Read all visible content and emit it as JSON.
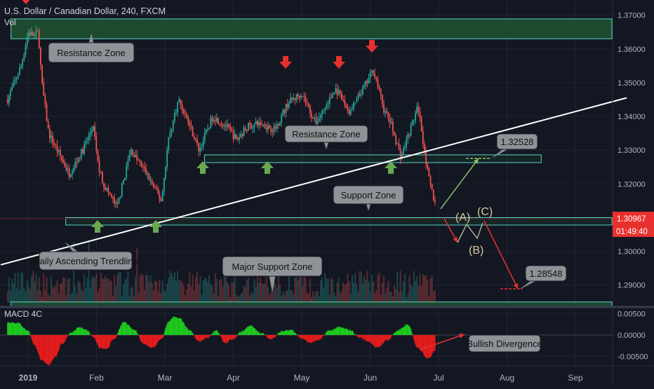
{
  "header": {
    "symbol_title": "U.S. Dollar / Canadian Dollar, 240, FXCM",
    "volume_label": "Vol"
  },
  "colors": {
    "background": "#131722",
    "up": "#26a69a",
    "down": "#ef5350",
    "zone_fill": "#1d4a2e",
    "zone_border": "#5fd4c8",
    "trendline": "#ffffff",
    "arrow_green": "#6aa84f",
    "arrow_red": "#e8312f",
    "macd_pos": "#1ecb1e",
    "macd_neg": "#e51c1c",
    "price_tag": "#e8312f",
    "callout_fill": "#8f9296"
  },
  "chart_data": [
    {
      "type": "candlestick",
      "title": "U.S. Dollar / Canadian Dollar, 240, FXCM",
      "x_tick_labels": [
        "2019",
        "Feb",
        "Mar",
        "Apr",
        "May",
        "Jun",
        "Jul",
        "Aug",
        "Sep"
      ],
      "y_tick_labels": [
        "1.37000",
        "1.36000",
        "1.35000",
        "1.34000",
        "1.33000",
        "1.32000",
        "1.31000",
        "1.30000",
        "1.29000"
      ],
      "ylim": [
        1.2835,
        1.3745
      ],
      "current_price": "1.30967",
      "countdown": "01:49:40",
      "price_path": {
        "x_months": [
          -0.3,
          -0.1,
          0.0,
          0.08,
          0.15,
          0.2,
          0.3,
          0.45,
          0.6,
          0.8,
          0.95,
          1.03,
          1.1,
          1.3,
          1.5,
          1.7,
          1.95,
          2.05,
          2.2,
          2.35,
          2.5,
          2.7,
          2.9,
          3.05,
          3.2,
          3.4,
          3.6,
          3.8,
          4.0,
          4.2,
          4.5,
          4.7,
          4.95,
          5.05,
          5.2,
          5.3,
          5.45,
          5.55,
          5.7,
          5.85,
          5.95
        ],
        "close": [
          1.345,
          1.355,
          1.365,
          1.364,
          1.365,
          1.35,
          1.335,
          1.329,
          1.323,
          1.33,
          1.337,
          1.325,
          1.32,
          1.313,
          1.33,
          1.324,
          1.315,
          1.333,
          1.345,
          1.338,
          1.33,
          1.34,
          1.337,
          1.333,
          1.337,
          1.338,
          1.336,
          1.344,
          1.347,
          1.338,
          1.348,
          1.341,
          1.35,
          1.354,
          1.342,
          1.338,
          1.328,
          1.334,
          1.343,
          1.322,
          1.314
        ]
      },
      "zones": [
        {
          "label": "Resistance Zone",
          "top": 1.3689,
          "bottom": 1.363,
          "x_from_months": -0.25,
          "x_to_months": 8.8
        },
        {
          "label": "Resistance Zone",
          "top": 1.3286,
          "bottom": 1.3263,
          "x_from_months": 2.58,
          "x_to_months": 7.5
        },
        {
          "label": "Support Zone",
          "top": 1.31,
          "bottom": 1.3078,
          "x_from_months": 0.55,
          "x_to_months": 8.8
        },
        {
          "label": "Major Support Zone",
          "top": 1.285,
          "bottom": 1.2835,
          "x_from_months": -0.25,
          "x_to_months": 8.8
        }
      ],
      "trendline": {
        "label": "Daily Ascending Trendline",
        "from": {
          "x_months": -0.4,
          "y": 1.296
        },
        "to": {
          "x_months": 8.75,
          "y": 1.3455
        }
      },
      "annotations": [
        "Resistance Zone",
        "Resistance Zone",
        "Support Zone",
        "Daily Ascending Trendline",
        "Major Support Zone",
        "1.32528",
        "1.28548",
        "(A)",
        "(B)",
        "(C)"
      ],
      "targets": [
        {
          "label": "1.32528",
          "value": 1.32528
        },
        {
          "label": "1.28548",
          "value": 1.28548
        }
      ],
      "wave_labels": [
        "(A)",
        "(B)",
        "(C)"
      ],
      "grid": true
    },
    {
      "type": "bar",
      "title": "MACD 4C",
      "y_tick_labels": [
        "0.00500",
        "0.00000",
        "-0.00500"
      ],
      "ylim": [
        -0.0072,
        0.0062
      ],
      "annotation": "Bullish Divergence",
      "x_months": [
        -0.3,
        -0.15,
        0.0,
        0.1,
        0.2,
        0.3,
        0.4,
        0.5,
        0.62,
        0.75,
        0.85,
        0.95,
        1.05,
        1.15,
        1.25,
        1.4,
        1.55,
        1.7,
        1.82,
        1.95,
        2.05,
        2.12,
        2.22,
        2.35,
        2.5,
        2.62,
        2.75,
        2.88,
        3.0,
        3.12,
        3.25,
        3.4,
        3.55,
        3.7,
        3.85,
        4.0,
        4.12,
        4.25,
        4.4,
        4.55,
        4.7,
        4.85,
        4.98,
        5.1,
        5.25,
        5.4,
        5.55,
        5.7,
        5.85,
        5.95
      ],
      "values": [
        0.003,
        0.0028,
        0.001,
        -0.0025,
        -0.006,
        -0.007,
        -0.005,
        -0.002,
        0.0005,
        0.0018,
        0.0012,
        -0.0005,
        -0.003,
        -0.0032,
        -0.001,
        0.003,
        0.0012,
        -0.0022,
        -0.003,
        -0.001,
        0.003,
        0.0042,
        0.0038,
        0.0012,
        -0.0015,
        -0.0006,
        0.001,
        -0.0018,
        -0.001,
        0.0008,
        0.0022,
        0.0005,
        -0.001,
        0.0008,
        0.0012,
        -0.0008,
        -0.0018,
        -0.0012,
        0.001,
        0.0018,
        0.0012,
        -0.0006,
        -0.0015,
        -0.003,
        -0.0012,
        0.001,
        0.0024,
        -0.003,
        -0.0055,
        -0.0035
      ],
      "grid": true
    }
  ]
}
